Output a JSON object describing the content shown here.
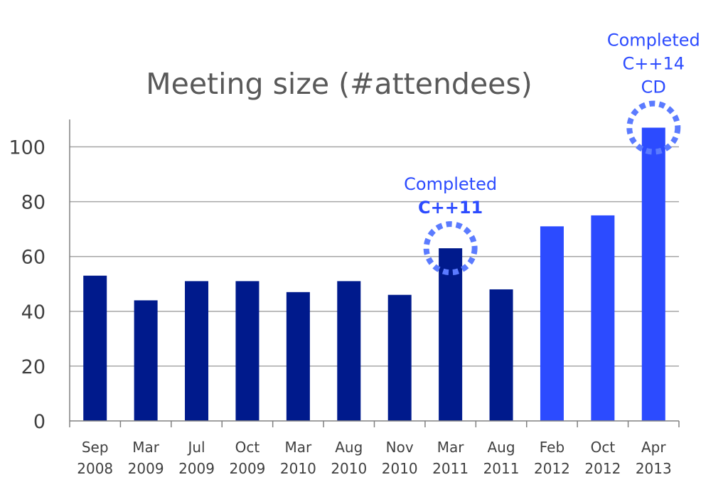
{
  "chart_data": {
    "type": "bar",
    "title": "Meeting size (#attendees)",
    "xlabel": "",
    "ylabel": "",
    "ylim": [
      0,
      110
    ],
    "yticks": [
      0,
      20,
      40,
      60,
      80,
      100
    ],
    "grid": true,
    "legend": "none",
    "categories": [
      [
        "Sep",
        "2008"
      ],
      [
        "Mar",
        "2009"
      ],
      [
        "Jul",
        "2009"
      ],
      [
        "Oct",
        "2009"
      ],
      [
        "Mar",
        "2010"
      ],
      [
        "Aug",
        "2010"
      ],
      [
        "Nov",
        "2010"
      ],
      [
        "Mar",
        "2011"
      ],
      [
        "Aug",
        "2011"
      ],
      [
        "Feb",
        "2012"
      ],
      [
        "Oct",
        "2012"
      ],
      [
        "Apr",
        "2013"
      ]
    ],
    "values": [
      53,
      44,
      51,
      51,
      47,
      51,
      46,
      63,
      48,
      71,
      75,
      107
    ],
    "bar_colors": [
      "#001a8c",
      "#001a8c",
      "#001a8c",
      "#001a8c",
      "#001a8c",
      "#001a8c",
      "#001a8c",
      "#001a8c",
      "#001a8c",
      "#2c4bff",
      "#2c4bff",
      "#2c4bff"
    ],
    "annotations": [
      {
        "category_index": 7,
        "lines": [
          "Completed",
          "C++11"
        ],
        "bold_line": 1,
        "color": "#2c4bff"
      },
      {
        "category_index": 11,
        "lines": [
          "Completed",
          "C++14",
          "CD"
        ],
        "bold_line": -1,
        "color": "#2c4bff"
      }
    ],
    "colors": {
      "grid": "#a6a6a6",
      "axis": "#808080",
      "highlight": "#5b7bff"
    }
  }
}
